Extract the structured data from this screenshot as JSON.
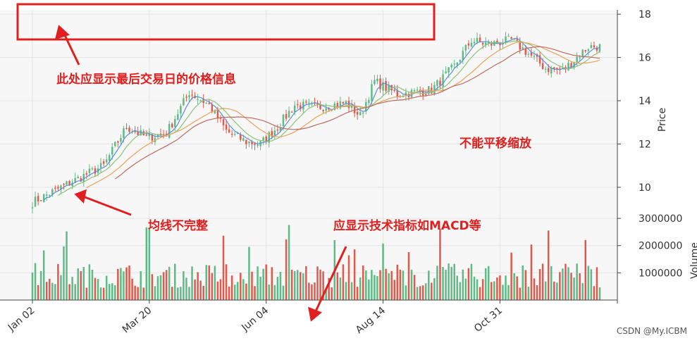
{
  "chart_data": [
    {
      "type": "candlestick",
      "x_ticks": [
        "Jan 02",
        "Mar 20",
        "Jun 04",
        "Aug 14",
        "Oct 31"
      ],
      "ylabel": "Price",
      "ylim": [
        8.5,
        18.2
      ],
      "y_ticks": [
        10,
        12,
        14,
        16,
        18
      ],
      "grid": true,
      "up_color": "#5dbb86",
      "down_color": "#e0594a",
      "moving_averages": [
        {
          "window": 5,
          "color": "#5b8fd6"
        },
        {
          "window": 10,
          "color": "#8dc27a"
        },
        {
          "window": 20,
          "color": "#e8a25a"
        },
        {
          "window": 30,
          "color": "#c06a60"
        }
      ],
      "close_keypoints": [
        [
          0,
          9.3
        ],
        [
          10,
          10.0
        ],
        [
          25,
          11.0
        ],
        [
          33,
          12.8
        ],
        [
          40,
          12.3
        ],
        [
          47,
          12.5
        ],
        [
          55,
          14.4
        ],
        [
          62,
          13.8
        ],
        [
          68,
          12.6
        ],
        [
          75,
          12.1
        ],
        [
          80,
          12.0
        ],
        [
          86,
          12.8
        ],
        [
          92,
          13.8
        ],
        [
          100,
          13.7
        ],
        [
          110,
          13.9
        ],
        [
          115,
          13.3
        ],
        [
          120,
          14.9
        ],
        [
          128,
          14.3
        ],
        [
          140,
          14.5
        ],
        [
          148,
          15.6
        ],
        [
          154,
          16.8
        ],
        [
          160,
          16.6
        ],
        [
          168,
          16.8
        ],
        [
          172,
          16.4
        ],
        [
          180,
          15.5
        ],
        [
          186,
          15.4
        ],
        [
          195,
          16.5
        ],
        [
          199,
          16.5
        ]
      ]
    },
    {
      "type": "bar",
      "ylabel": "Volume",
      "ylim": [
        0,
        2950000
      ],
      "y_ticks": [
        1000000,
        2000000,
        3000000
      ],
      "y_tick_labels": [
        "1000000",
        "2000000",
        "3000000"
      ]
    }
  ],
  "annotations": {
    "top_box_text": "此处应显示最后交易日的价格信息",
    "no_pan_zoom": "不能平移缩放",
    "ma_incomplete": "均线不完整",
    "should_show_indicators": "应显示技术指标如MACD等"
  },
  "watermark": "CSDN @My.ICBM",
  "colors": {
    "annotation_red": "#e0201f",
    "axes_bg": "#f7f7f7"
  }
}
